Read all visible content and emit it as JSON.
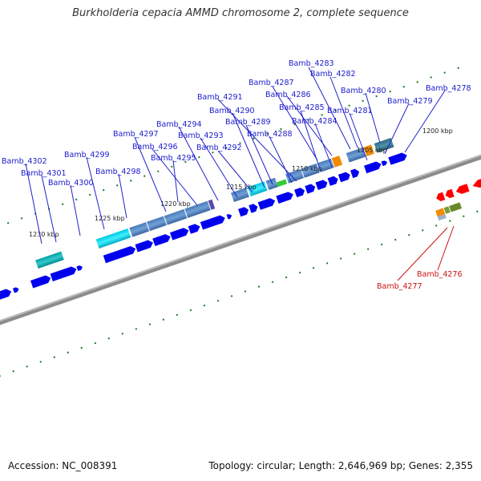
{
  "title": "Burkholderia cepacia AMMD chromosome 2, complete sequence",
  "footer": {
    "accession": "Accession: NC_008391",
    "stats": "Topology: circular; Length: 2,646,969 bp; Genes: 2,355"
  },
  "ticks": [
    "1200 kbp",
    "1205 kbp",
    "1210 kbp",
    "1215 kbp",
    "1220 kbp",
    "1225 kbp",
    "1230 kbp"
  ],
  "genes_top": [
    "Bamb_4283",
    "Bamb_4282",
    "Bamb_4287",
    "Bamb_4286",
    "Bamb_4280",
    "Bamb_4278",
    "Bamb_4291",
    "Bamb_4285",
    "Bamb_4279",
    "Bamb_4290",
    "Bamb_4281",
    "Bamb_4289",
    "Bamb_4284",
    "Bamb_4294",
    "Bamb_4297",
    "Bamb_4293",
    "Bamb_4288",
    "Bamb_4296",
    "Bamb_4292",
    "Bamb_4299",
    "Bamb_4302",
    "Bamb_4295",
    "Bamb_4301",
    "Bamb_4298",
    "Bamb_4300"
  ],
  "genes_bottom": [
    "Bamb_4276",
    "Bamb_4277"
  ],
  "colors": {
    "forward": "#0000ee",
    "reverse": "#ff0000",
    "backbone": "#8c8c8c",
    "tick": "#1f7a1f",
    "label": "#1a1acc"
  }
}
